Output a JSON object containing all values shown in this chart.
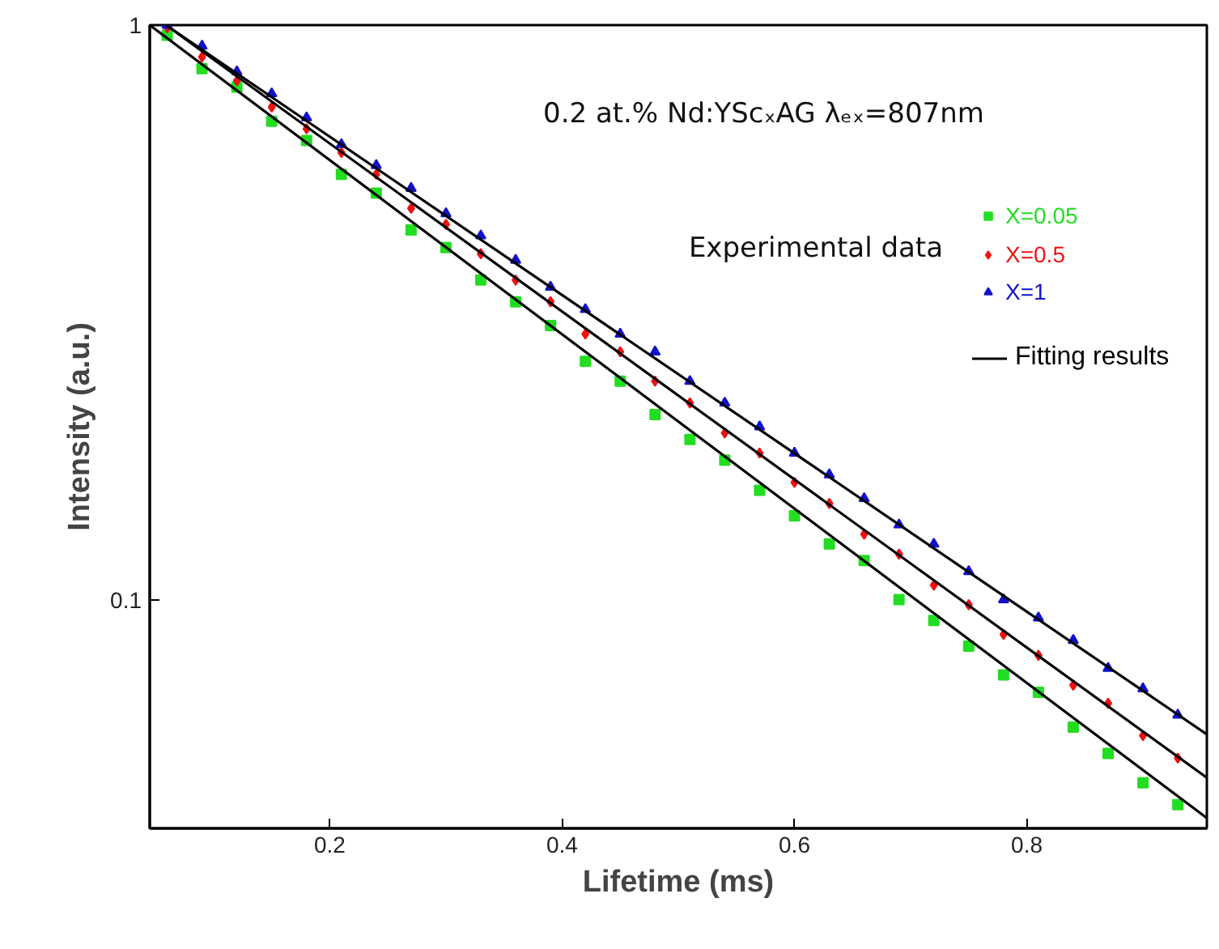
{
  "chart_data": {
    "type": "scatter",
    "xlabel": "Lifetime (ms)",
    "ylabel": "Intensity (a.u.)",
    "annotations": [
      "0.2 at.% Nd:YScₓAG   λₑₓ=807nm",
      "Experimental data"
    ],
    "x": [
      0.06,
      0.09,
      0.12,
      0.15,
      0.18,
      0.21,
      0.24,
      0.27,
      0.3,
      0.33,
      0.36,
      0.39,
      0.42,
      0.45,
      0.48,
      0.51,
      0.54,
      0.57,
      0.6,
      0.63,
      0.66,
      0.69,
      0.72,
      0.75,
      0.78,
      0.81,
      0.84,
      0.87,
      0.9,
      0.93
    ],
    "series": [
      {
        "name": "X=0.05",
        "color": "#22dd22",
        "marker": "square",
        "values": [
          0.96,
          0.84,
          0.78,
          0.68,
          0.63,
          0.55,
          0.51,
          0.44,
          0.41,
          0.36,
          0.33,
          0.3,
          0.26,
          0.24,
          0.21,
          0.19,
          0.175,
          0.155,
          0.14,
          0.125,
          0.117,
          0.1,
          0.092,
          0.083,
          0.074,
          0.069,
          0.06,
          0.054,
          0.048,
          0.044
        ]
      },
      {
        "name": "X=0.5",
        "color": "#ee1111",
        "marker": "diamond",
        "values": [
          0.99,
          0.88,
          0.8,
          0.72,
          0.66,
          0.6,
          0.55,
          0.48,
          0.45,
          0.4,
          0.36,
          0.33,
          0.29,
          0.27,
          0.24,
          0.22,
          0.195,
          0.18,
          0.16,
          0.147,
          0.13,
          0.12,
          0.106,
          0.098,
          0.087,
          0.08,
          0.071,
          0.066,
          0.058,
          0.053
        ]
      },
      {
        "name": "X=1",
        "color": "#1111cc",
        "marker": "triangle",
        "values": [
          1.0,
          0.92,
          0.83,
          0.76,
          0.69,
          0.62,
          0.57,
          0.52,
          0.47,
          0.43,
          0.39,
          0.35,
          0.32,
          0.29,
          0.27,
          0.24,
          0.22,
          0.2,
          0.18,
          0.165,
          0.15,
          0.135,
          0.125,
          0.112,
          0.1,
          0.093,
          0.085,
          0.076,
          0.07,
          0.063
        ]
      },
      {
        "name": "Fitting results",
        "type": "line",
        "color": "#000000",
        "x": [
          0.045,
          0.955
        ],
        "values": [
          1.0,
          0.0417
        ]
      },
      {
        "type": "line",
        "color": "#000000",
        "x": [
          0.059,
          0.955
        ],
        "values": [
          1.0,
          0.049
        ]
      },
      {
        "type": "line",
        "color": "#000000",
        "x": [
          0.059,
          0.955
        ],
        "values": [
          1.0,
          0.0583
        ]
      }
    ],
    "xlim": [
      0.045,
      0.955
    ],
    "ylim": [
      0.04,
      1
    ],
    "xticks": [
      0.2,
      0.4,
      0.6,
      0.8
    ],
    "yticks": [
      1,
      0.1
    ],
    "log": "y",
    "grid": false,
    "legend": "top right",
    "line_style": "solid"
  }
}
